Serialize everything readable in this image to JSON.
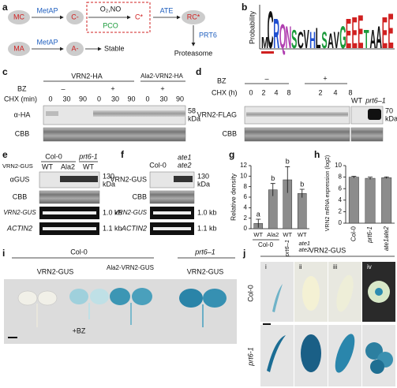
{
  "panel_a": {
    "label": "a",
    "nodes": [
      "MC",
      "C-",
      "C*",
      "RC*",
      "Proteasome",
      "MA",
      "A-",
      "Stable"
    ],
    "enzymes": [
      "MetAP",
      "O₂,NO",
      "PCO",
      "ATE",
      "PRT6",
      "MetAP"
    ]
  },
  "panel_b": {
    "label": "b",
    "y_label": "Probability",
    "letters": [
      "M",
      "C",
      "R",
      "Q",
      "N",
      "S",
      "C",
      "V",
      "H",
      "L",
      "S",
      "A",
      "V",
      "G",
      "E",
      "E",
      "E",
      "T",
      "A",
      "A",
      "E",
      "E"
    ]
  },
  "panel_c": {
    "label": "c",
    "constructs": [
      "VRN2-HA",
      "Ala2-VRN2-HA"
    ],
    "bz_label": "BZ",
    "bz": [
      "–",
      "+",
      "+"
    ],
    "chx_label": "CHX (min)",
    "chx": [
      0,
      30,
      90,
      0,
      30,
      90,
      0,
      30,
      90
    ],
    "rows": [
      "α-HA",
      "CBB"
    ],
    "size": "58",
    "unit": "kDa"
  },
  "panel_d": {
    "label": "d",
    "bz_label": "BZ",
    "bz": [
      "–",
      "+"
    ],
    "chx_label": "CHX (h)",
    "chx": [
      0,
      2,
      4,
      8,
      2,
      4,
      8
    ],
    "genotypes": [
      "WT",
      "prt6–1"
    ],
    "rows": [
      "VRN2-FLAG",
      "CBB"
    ],
    "size": "70",
    "unit": "kDa"
  },
  "panel_e": {
    "label": "e",
    "construct": "VRN2-GUS",
    "backgrounds": [
      "Col-0",
      "prt6-1"
    ],
    "lanes": [
      "WT",
      "Ala2",
      "WT"
    ],
    "rows": [
      "αGUS",
      "CBB",
      "VRN2-GUS",
      "ACTIN2"
    ],
    "size": "130",
    "unit": "kDa",
    "sizes": [
      "1.0 kb",
      "1.1 kb"
    ]
  },
  "panel_f": {
    "label": "f",
    "lanes": [
      "Col-0",
      "ate1",
      "ate2"
    ],
    "rows": [
      "VRN2-GUS",
      "CBB",
      "VRN2-GUS",
      "ACTIN2"
    ],
    "size": "130",
    "unit": "kDa",
    "sizes": [
      "1.0 kb",
      "1.1 kb"
    ]
  },
  "chart_data": [
    {
      "type": "bar",
      "panel": "g",
      "y_label": "Relative density",
      "categories": [
        "WT",
        "Ala2",
        "WT",
        "WT"
      ],
      "values": [
        1,
        7.4,
        9.3,
        6.7
      ],
      "errors": [
        0.8,
        1.2,
        2.5,
        0.8
      ],
      "annotations": [
        "a",
        "b",
        "b",
        "b"
      ],
      "groups": [
        "Col-0",
        "prt6–1",
        "ate1",
        "ate2"
      ],
      "color": "#8c8c8c",
      "ylim": [
        0,
        12
      ],
      "yticks": [
        0,
        2,
        4,
        6,
        8,
        10,
        12
      ]
    },
    {
      "type": "bar",
      "panel": "h",
      "y_label": "VRN2 mRNA expression (log2)",
      "categories": [
        "Col-0",
        "prt6-1",
        "ate1ate2"
      ],
      "values": [
        8.0,
        7.8,
        7.9
      ],
      "errors": [
        0.15,
        0.2,
        0.15
      ],
      "color": "#8c8c8c",
      "ylim": [
        0,
        10
      ],
      "yticks": [
        0,
        2,
        4,
        6,
        8,
        10
      ]
    }
  ],
  "panel_i": {
    "label": "i",
    "backgrounds": [
      "Col-0",
      "prt6–1"
    ],
    "constructs": [
      "VRN2-GUS",
      "Ala2-VRN2-GUS",
      "VRN2-GUS"
    ],
    "treatment": "+BZ"
  },
  "panel_j": {
    "label": "j",
    "construct": "VRN2-GUS",
    "rows": [
      "Col-0",
      "prt6-1"
    ],
    "columns": [
      "i",
      "ii",
      "iii",
      "iv"
    ]
  }
}
